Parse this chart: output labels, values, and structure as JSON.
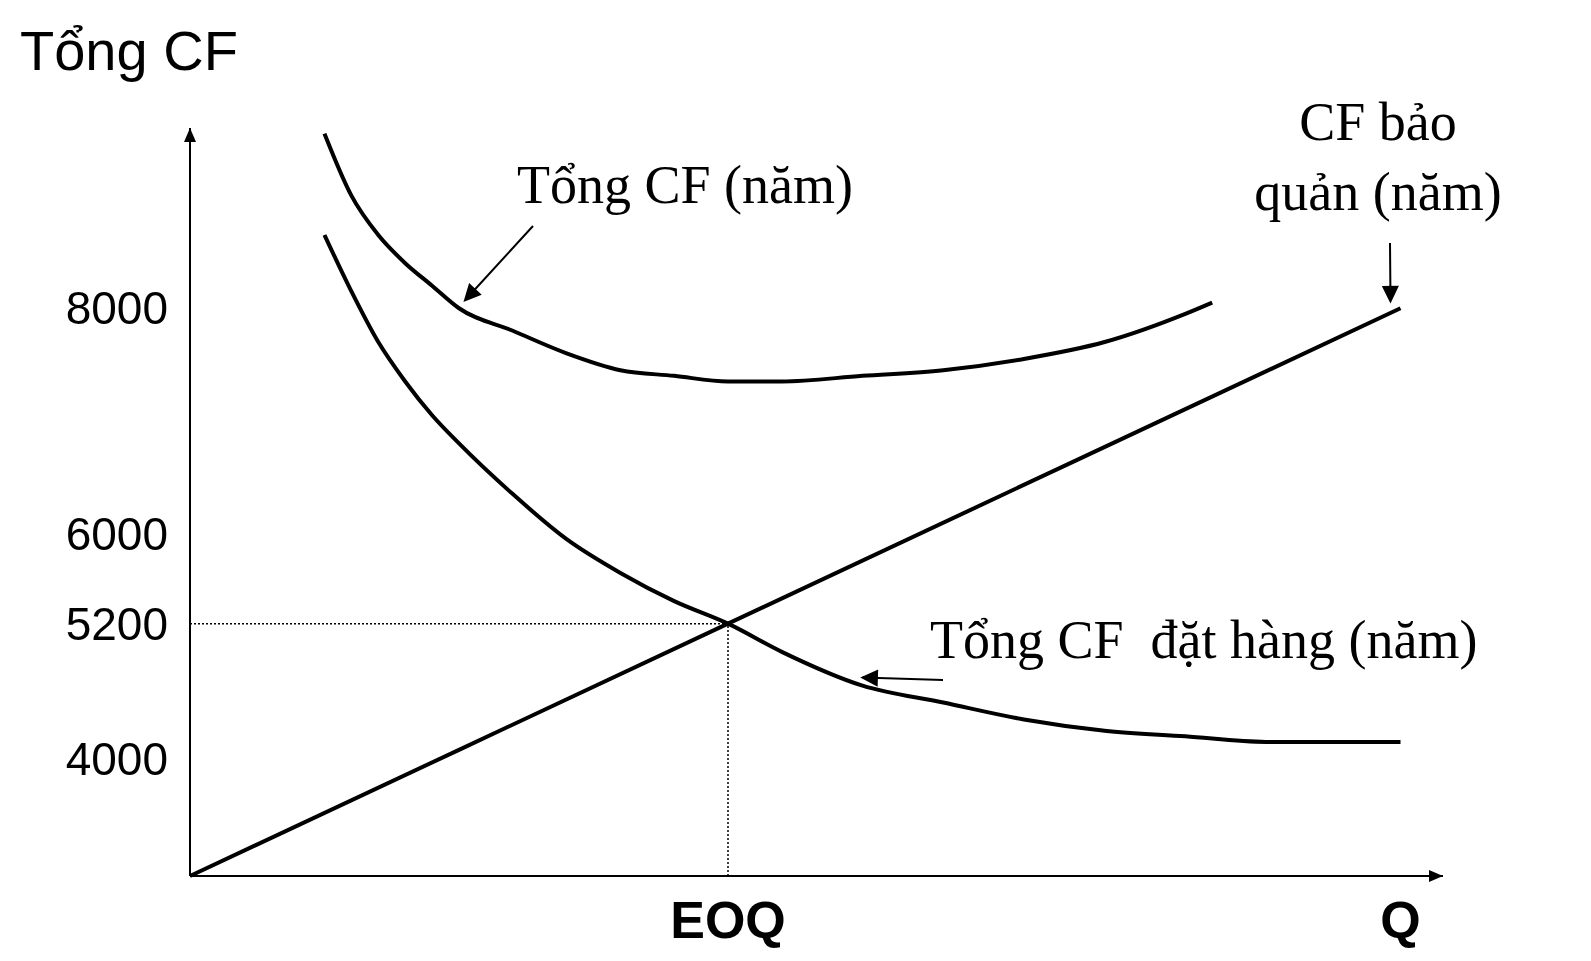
{
  "chart_data": {
    "type": "line",
    "ylabel": "Tổng CF",
    "categories": [
      null,
      null,
      null,
      null,
      null,
      null,
      null,
      null,
      null,
      null,
      null,
      null,
      null,
      null,
      null,
      null,
      null,
      null,
      null,
      null,
      "EOQ",
      null,
      null,
      null,
      null,
      null,
      null,
      null,
      null,
      null,
      null,
      null,
      null,
      null,
      null,
      null,
      null,
      null,
      null,
      null,
      null,
      null,
      null,
      null,
      null,
      "Q"
    ],
    "ylim": [
      2960,
      9600
    ],
    "yticks": [
      4000,
      5200,
      6000,
      8000
    ],
    "grid": false,
    "series": [
      {
        "name": "Tổng CF (năm)",
        "color": "#000000",
        "values": [
          null,
          null,
          null,
          null,
          null,
          9550,
          9000,
          8650,
          8400,
          8200,
          8000,
          null,
          7800,
          null,
          7600,
          null,
          7450,
          null,
          7400,
          null,
          7350,
          null,
          7350,
          null,
          null,
          7400,
          null,
          null,
          7450,
          null,
          null,
          7550,
          null,
          null,
          7700,
          null,
          null,
          7950,
          8050,
          null,
          null,
          null,
          null,
          null,
          null,
          null
        ]
      },
      {
        "name": "CF bảo quản (năm)",
        "color": "#000000",
        "values": [
          2960,
          null,
          null,
          null,
          null,
          null,
          null,
          null,
          null,
          null,
          null,
          null,
          null,
          null,
          null,
          null,
          null,
          null,
          null,
          null,
          5200,
          null,
          null,
          null,
          null,
          null,
          null,
          null,
          null,
          null,
          null,
          null,
          null,
          null,
          null,
          null,
          null,
          null,
          null,
          null,
          null,
          null,
          null,
          null,
          null,
          8000
        ]
      },
      {
        "name": "Tổng CF  đặt hàng (năm)",
        "color": "#000000",
        "values": [
          null,
          null,
          null,
          null,
          null,
          8650,
          8150,
          7700,
          7350,
          7050,
          6800,
          null,
          6350,
          null,
          5950,
          null,
          5650,
          null,
          5400,
          null,
          5200,
          null,
          4950,
          null,
          null,
          4650,
          null,
          null,
          4500,
          null,
          null,
          4350,
          null,
          null,
          4250,
          null,
          null,
          4200,
          null,
          null,
          4150,
          null,
          null,
          4150,
          null,
          4150
        ]
      }
    ],
    "ref_lines": [
      {
        "axis": "y",
        "value": 5200,
        "color": "#000000",
        "line_style": "dotted"
      },
      {
        "axis": "x",
        "value": "EOQ",
        "color": "#000000",
        "line_style": "dotted"
      }
    ]
  }
}
